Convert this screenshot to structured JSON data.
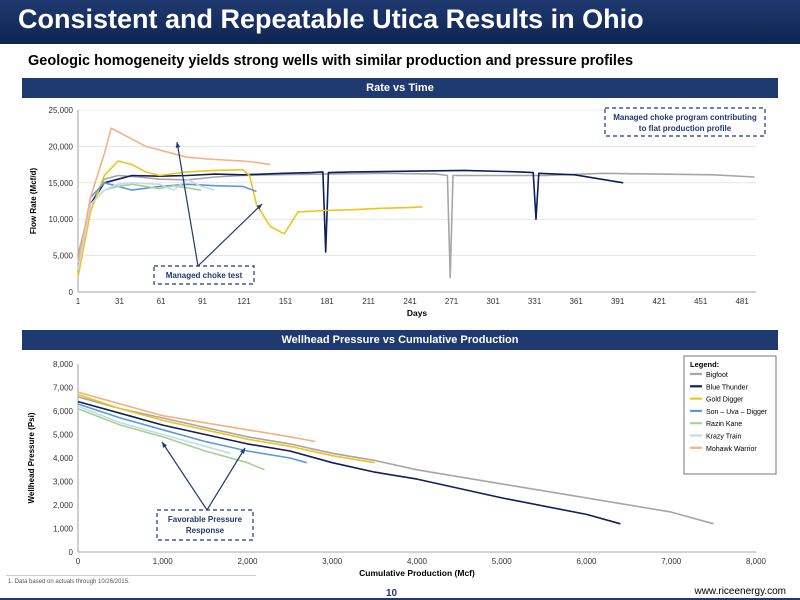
{
  "page": {
    "title": "Consistent and Repeatable Utica Results in Ohio",
    "subtitle": "Geologic homogeneity yields strong wells with similar production and pressure profiles",
    "band1": "Rate vs Time",
    "band2": "Wellhead Pressure vs Cumulative Production",
    "footnote": "1.    Data based on actuals through 10/26/2015.",
    "page_number": "10",
    "website": "www.riceenergy.com"
  },
  "colors": {
    "Bigfoot": "#a6a6a6",
    "Blue Thunder": "#0d1f5c",
    "Gold Digger": "#f2c318",
    "Son – Uva – Digger": "#5b9bd5",
    "Razin Kane": "#a9d18e",
    "Krazy Train": "#c5d9ef",
    "Mohawk Warrior": "#f4b183",
    "brand": "#1f3a70"
  },
  "chart_data": [
    {
      "type": "line",
      "xlabel": "Days",
      "ylabel": "Flow Rate (Mcf/d)",
      "xticks": [
        "1",
        "31",
        "61",
        "91",
        "121",
        "151",
        "181",
        "211",
        "241",
        "271",
        "301",
        "331",
        "361",
        "391",
        "421",
        "451",
        "481"
      ],
      "yticks": [
        "0",
        "5,000",
        "10,000",
        "15,000",
        "20,000",
        "25,000"
      ],
      "xlim": [
        1,
        491
      ],
      "ylim": [
        0,
        25000
      ],
      "grid": true,
      "annotations": [
        "Managed choke program contributing to flat production profile",
        "Managed choke test"
      ],
      "series": [
        {
          "name": "Bigfoot",
          "x": [
            1,
            10,
            20,
            30,
            45,
            60,
            80,
            100,
            120,
            140,
            180,
            220,
            260,
            268,
            270,
            272,
            300,
            340,
            380,
            420,
            460,
            490
          ],
          "y": [
            5000,
            12000,
            15500,
            16000,
            15800,
            15500,
            15400,
            15800,
            16000,
            16100,
            16200,
            16300,
            16200,
            16000,
            2000,
            16000,
            16000,
            16000,
            16300,
            16200,
            16100,
            15800
          ]
        },
        {
          "name": "Blue Thunder",
          "x": [
            1,
            10,
            20,
            30,
            40,
            60,
            80,
            100,
            120,
            150,
            170,
            178,
            180,
            182,
            200,
            240,
            280,
            320,
            330,
            332,
            334,
            360,
            395
          ],
          "y": [
            3000,
            12000,
            15000,
            15500,
            16000,
            15900,
            16000,
            16200,
            16100,
            16300,
            16400,
            16500,
            5500,
            16400,
            16500,
            16600,
            16700,
            16500,
            16400,
            10000,
            16300,
            16100,
            15000
          ]
        },
        {
          "name": "Gold Digger",
          "x": [
            1,
            10,
            20,
            30,
            40,
            50,
            60,
            80,
            100,
            120,
            125,
            130,
            140,
            150,
            160,
            180,
            200,
            220,
            240,
            250
          ],
          "y": [
            2000,
            11000,
            16000,
            18000,
            17500,
            16500,
            16000,
            16500,
            16700,
            16800,
            16000,
            12000,
            9000,
            8000,
            11000,
            11200,
            11300,
            11500,
            11600,
            11700
          ]
        },
        {
          "name": "Son – Uva – Digger",
          "x": [
            1,
            10,
            20,
            30,
            40,
            60,
            80,
            100,
            120,
            130
          ],
          "y": [
            3000,
            13000,
            15000,
            14500,
            14000,
            14500,
            14800,
            14600,
            14500,
            13800
          ]
        },
        {
          "name": "Razin Kane",
          "x": [
            1,
            10,
            20,
            30,
            40,
            50,
            60,
            70,
            80,
            90
          ],
          "y": [
            3000,
            12000,
            14000,
            14500,
            14800,
            14500,
            14200,
            14600,
            14300,
            14000
          ]
        },
        {
          "name": "Krazy Train",
          "x": [
            1,
            10,
            20,
            30,
            40,
            60,
            70,
            80,
            90,
            100
          ],
          "y": [
            3000,
            12000,
            14000,
            14800,
            15000,
            14800,
            14000,
            15500,
            14500,
            14000
          ]
        },
        {
          "name": "Mohawk Warrior",
          "x": [
            1,
            10,
            20,
            25,
            30,
            40,
            50,
            60,
            70,
            80,
            100,
            120,
            130,
            140
          ],
          "y": [
            4000,
            13000,
            19000,
            22500,
            22000,
            21000,
            20000,
            19500,
            19000,
            18500,
            18200,
            18000,
            17800,
            17500
          ]
        }
      ]
    },
    {
      "type": "line",
      "xlabel": "Cumulative Production (Mcf)",
      "ylabel": "Wellhead Pressure (Psi)",
      "xticks": [
        "0",
        "1,000",
        "2,000",
        "3,000",
        "4,000",
        "5,000",
        "6,000",
        "7,000",
        "8,000"
      ],
      "yticks": [
        "0",
        "1,000",
        "2,000",
        "3,000",
        "4,000",
        "5,000",
        "6,000",
        "7,000",
        "8,000"
      ],
      "xlim": [
        0,
        8000
      ],
      "ylim": [
        0,
        8000
      ],
      "grid": false,
      "legend_position": "right",
      "legend_title": "Legend:",
      "annotations": [
        "Favorable Pressure Response"
      ],
      "series": [
        {
          "name": "Bigfoot",
          "x": [
            0,
            500,
            1000,
            1500,
            2000,
            2500,
            3000,
            3500,
            4000,
            5000,
            6000,
            7000,
            7500
          ],
          "y": [
            6600,
            6100,
            5700,
            5300,
            4900,
            4600,
            4200,
            3900,
            3500,
            2900,
            2300,
            1700,
            1200
          ]
        },
        {
          "name": "Blue Thunder",
          "x": [
            0,
            500,
            1000,
            1500,
            2000,
            2500,
            3000,
            3500,
            4000,
            5000,
            6000,
            6400
          ],
          "y": [
            6400,
            5900,
            5400,
            5000,
            4600,
            4300,
            3800,
            3400,
            3100,
            2300,
            1600,
            1200
          ]
        },
        {
          "name": "Gold Digger",
          "x": [
            0,
            500,
            1000,
            1500,
            2000,
            2500,
            3000,
            3500
          ],
          "y": [
            6700,
            6100,
            5600,
            5200,
            4800,
            4500,
            4100,
            3800
          ]
        },
        {
          "name": "Son – Uva – Digger",
          "x": [
            0,
            500,
            1000,
            1500,
            2000,
            2500,
            2700
          ],
          "y": [
            6300,
            5700,
            5200,
            4700,
            4300,
            4000,
            3800
          ]
        },
        {
          "name": "Razin Kane",
          "x": [
            0,
            500,
            1000,
            1500,
            2000,
            2200
          ],
          "y": [
            6100,
            5400,
            4900,
            4300,
            3800,
            3500
          ]
        },
        {
          "name": "Krazy Train",
          "x": [
            0,
            500,
            1000,
            1500,
            1800
          ],
          "y": [
            6200,
            5500,
            5000,
            4500,
            4200
          ]
        },
        {
          "name": "Mohawk Warrior",
          "x": [
            0,
            500,
            1000,
            1500,
            2000,
            2500,
            2800
          ],
          "y": [
            6800,
            6300,
            5800,
            5500,
            5200,
            4900,
            4700
          ]
        }
      ]
    }
  ]
}
